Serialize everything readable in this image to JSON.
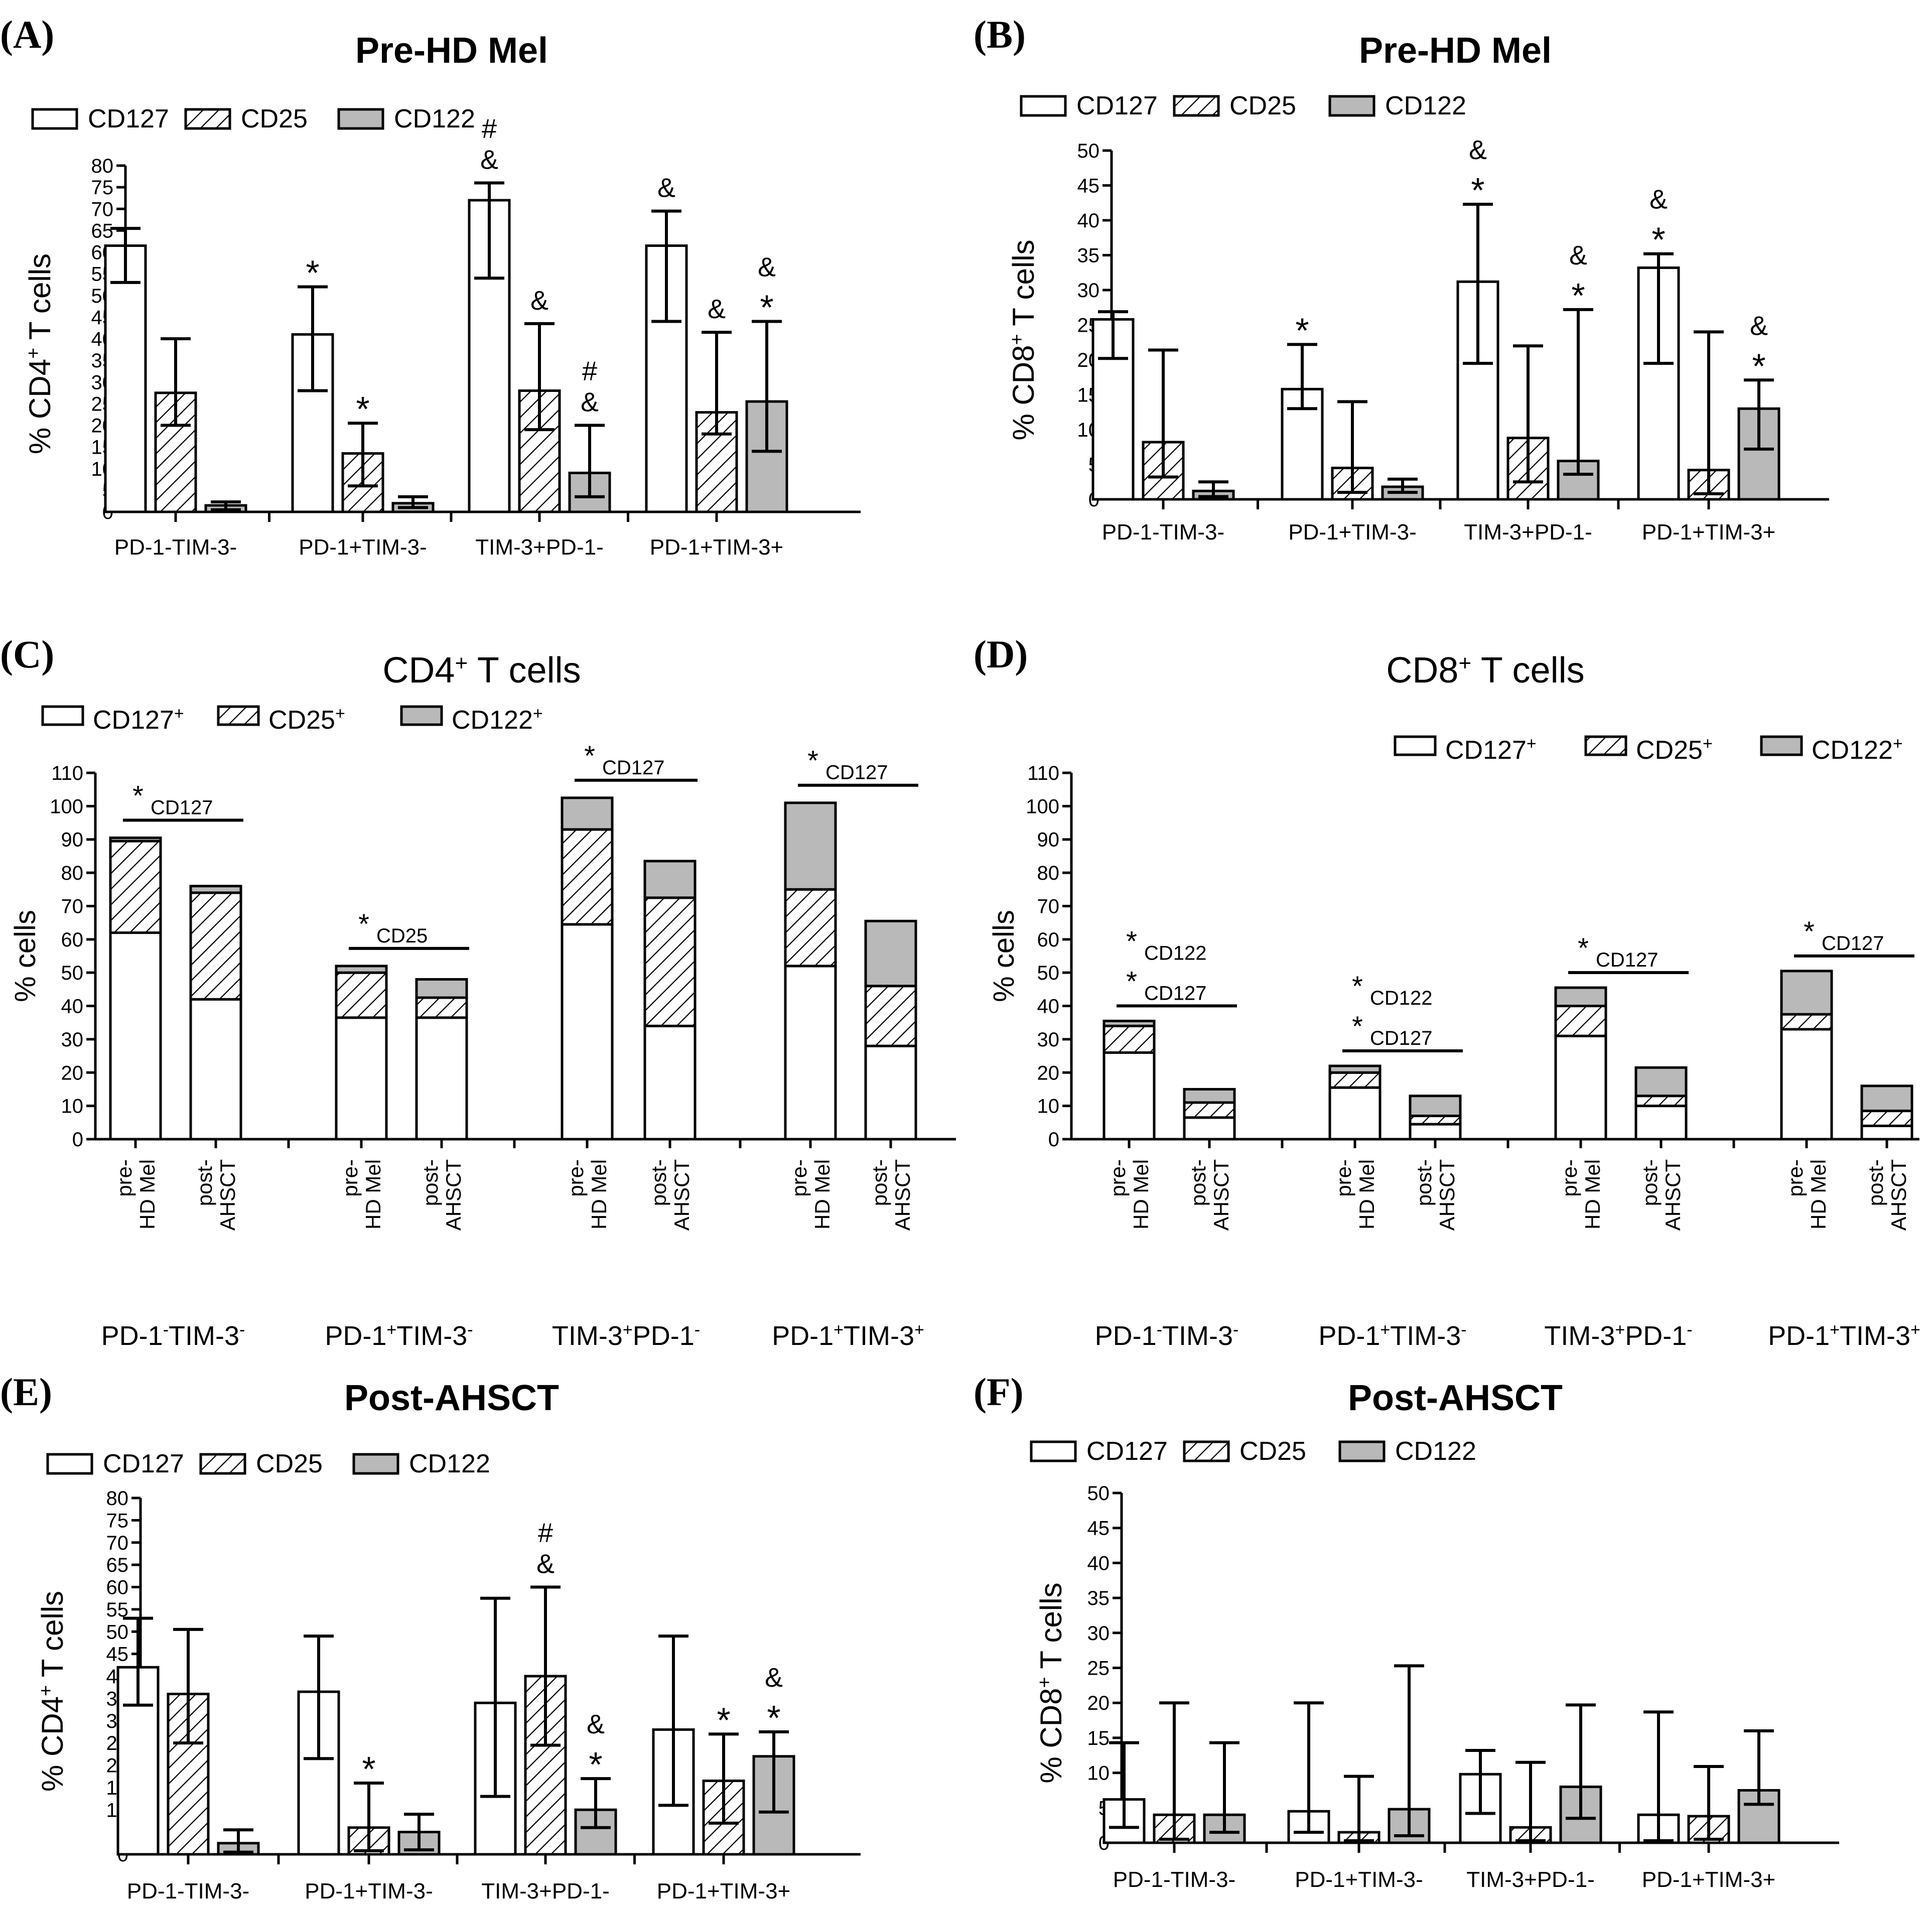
{
  "colors": {
    "gray": "#b9b9b9",
    "black": "#000000",
    "white": "#ffffff"
  },
  "chart_data": [
    {
      "id": "A",
      "panel_label": "(A)",
      "type": "bar",
      "title": "Pre-HD Mel",
      "ylabel_parts": [
        "% CD4",
        "+",
        " T cells"
      ],
      "ylim": [
        0,
        80
      ],
      "yticks": [
        0,
        5,
        10,
        15,
        20,
        25,
        30,
        35,
        40,
        45,
        50,
        55,
        60,
        65,
        70,
        75,
        80
      ],
      "categories": [
        "PD-1-TIM-3-",
        "PD-1+TIM-3-",
        "TIM-3+PD-1-",
        "PD-1+TIM-3+"
      ],
      "legend": [
        "CD127",
        "CD25",
        "CD122"
      ],
      "series": [
        {
          "name": "CD127",
          "values": [
            61.5,
            41,
            72,
            61.5
          ],
          "err_low": [
            53,
            28,
            54,
            44
          ],
          "err_high": [
            65.5,
            52,
            76,
            69.5
          ]
        },
        {
          "name": "CD25",
          "values": [
            27.5,
            13.5,
            28,
            23
          ],
          "err_low": [
            20,
            6,
            19,
            18
          ],
          "err_high": [
            40,
            20.5,
            43.5,
            41.5
          ]
        },
        {
          "name": "CD122",
          "values": [
            1.5,
            2,
            9,
            25.5
          ],
          "err_low": [
            0.5,
            1,
            3.5,
            14
          ],
          "err_high": [
            2.3,
            3.5,
            20,
            44
          ]
        }
      ],
      "annotations": [
        {
          "series": 0,
          "cat": 1,
          "lines": [
            "*"
          ]
        },
        {
          "series": 0,
          "cat": 2,
          "lines": [
            "#",
            "&"
          ]
        },
        {
          "series": 0,
          "cat": 3,
          "lines": [
            "&"
          ]
        },
        {
          "series": 1,
          "cat": 1,
          "lines": [
            "*"
          ]
        },
        {
          "series": 1,
          "cat": 2,
          "lines": [
            "&"
          ]
        },
        {
          "series": 1,
          "cat": 3,
          "lines": [
            "&"
          ]
        },
        {
          "series": 2,
          "cat": 2,
          "lines": [
            "#",
            "&"
          ]
        },
        {
          "series": 2,
          "cat": 3,
          "lines": [
            "&",
            "*"
          ]
        }
      ]
    },
    {
      "id": "B",
      "panel_label": "(B)",
      "type": "bar",
      "title": "Pre-HD Mel",
      "ylabel_parts": [
        "% CD8",
        "+",
        " T cells"
      ],
      "ylim": [
        0,
        50
      ],
      "yticks": [
        0,
        5,
        10,
        15,
        20,
        25,
        30,
        35,
        40,
        45,
        50
      ],
      "categories": [
        "PD-1-TIM-3-",
        "PD-1+TIM-3-",
        "TIM-3+PD-1-",
        "PD-1+TIM-3+"
      ],
      "legend": [
        "CD127",
        "CD25",
        "CD122"
      ],
      "series": [
        {
          "name": "CD127",
          "values": [
            25.8,
            15.8,
            31.2,
            33.2
          ],
          "err_low": [
            20.2,
            13,
            19.5,
            19.5
          ],
          "err_high": [
            26.9,
            22.2,
            42.3,
            35.2
          ]
        },
        {
          "name": "CD25",
          "values": [
            8.2,
            4.5,
            8.8,
            4.2
          ],
          "err_low": [
            3.2,
            1,
            2.5,
            0.8
          ],
          "err_high": [
            21.4,
            14,
            22,
            24
          ]
        },
        {
          "name": "CD122",
          "values": [
            1.2,
            1.8,
            5.5,
            13
          ],
          "err_low": [
            0.4,
            1,
            3.6,
            7.2
          ],
          "err_high": [
            2.5,
            2.9,
            27.2,
            17.1
          ]
        }
      ],
      "annotations": [
        {
          "series": 0,
          "cat": 1,
          "lines": [
            "*"
          ]
        },
        {
          "series": 0,
          "cat": 2,
          "lines": [
            "&",
            "*"
          ]
        },
        {
          "series": 0,
          "cat": 3,
          "lines": [
            "&",
            "*"
          ]
        },
        {
          "series": 2,
          "cat": 2,
          "lines": [
            "&",
            "*"
          ]
        },
        {
          "series": 2,
          "cat": 3,
          "lines": [
            "&",
            "*"
          ]
        }
      ]
    },
    {
      "id": "C",
      "panel_label": "(C)",
      "type": "stacked_bar",
      "title": "CD4",
      "title_sup": "+",
      "title_rest": " T cells",
      "ylabel": "% cells",
      "ylim": [
        0,
        110
      ],
      "yticks": [
        0,
        10,
        20,
        30,
        40,
        50,
        60,
        70,
        80,
        90,
        100,
        110
      ],
      "legend": [
        "CD127",
        "CD25",
        "CD122"
      ],
      "legend_sup": "+",
      "bar_labels": [
        [
          "pre-",
          "HD Mel"
        ],
        [
          "post-",
          "AHSCT"
        ]
      ],
      "group_labels": [
        {
          "a": "PD-1",
          "as": "-",
          "b": "TIM-3",
          "bs": "-"
        },
        {
          "a": "PD-1",
          "as": "+",
          "b": "TIM-3",
          "bs": "-"
        },
        {
          "a": "TIM-3",
          "as": "+",
          "b": "PD-1",
          "bs": "-"
        },
        {
          "a": "PD-1",
          "as": "+",
          "b": "TIM-3",
          "bs": "+"
        }
      ],
      "groups": [
        [
          {
            "CD127": 62,
            "CD25": 27.5,
            "CD122": 1
          },
          {
            "CD127": 42,
            "CD25": 32,
            "CD122": 2
          }
        ],
        [
          {
            "CD127": 36.5,
            "CD25": 13.5,
            "CD122": 2
          },
          {
            "CD127": 36.5,
            "CD25": 6,
            "CD122": 5.5
          }
        ],
        [
          {
            "CD127": 64.5,
            "CD25": 28.5,
            "CD122": 9.5
          },
          {
            "CD127": 34,
            "CD25": 38.5,
            "CD122": 11
          }
        ],
        [
          {
            "CD127": 52,
            "CD25": 23,
            "CD122": 26
          },
          {
            "CD127": 28,
            "CD25": 18,
            "CD122": 19.5
          }
        ]
      ],
      "sig": [
        {
          "group": 0,
          "lines": [
            "CD127"
          ]
        },
        {
          "group": 1,
          "lines": [
            "CD25"
          ]
        },
        {
          "group": 2,
          "lines": [
            "CD127"
          ]
        },
        {
          "group": 3,
          "lines": [
            "CD127"
          ]
        }
      ]
    },
    {
      "id": "D",
      "panel_label": "(D)",
      "type": "stacked_bar",
      "title": "CD8",
      "title_sup": "+",
      "title_rest": " T cells",
      "ylabel": "% cells",
      "ylim": [
        0,
        110
      ],
      "yticks": [
        0,
        10,
        20,
        30,
        40,
        50,
        60,
        70,
        80,
        90,
        100,
        110
      ],
      "legend": [
        "CD127",
        "CD25",
        "CD122"
      ],
      "legend_sup": "+",
      "bar_labels": [
        [
          "pre-",
          "HD Mel"
        ],
        [
          "post-",
          "AHSCT"
        ]
      ],
      "group_labels": [
        {
          "a": "PD-1",
          "as": "-",
          "b": "TIM-3",
          "bs": "-"
        },
        {
          "a": "PD-1",
          "as": "+",
          "b": "TIM-3",
          "bs": "-"
        },
        {
          "a": "TIM-3",
          "as": "+",
          "b": "PD-1",
          "bs": "-"
        },
        {
          "a": "PD-1",
          "as": "+",
          "b": "TIM-3",
          "bs": "+"
        }
      ],
      "groups": [
        [
          {
            "CD127": 26,
            "CD25": 8,
            "CD122": 1.5
          },
          {
            "CD127": 6.5,
            "CD25": 4.5,
            "CD122": 4
          }
        ],
        [
          {
            "CD127": 15.5,
            "CD25": 4.5,
            "CD122": 2
          },
          {
            "CD127": 4.5,
            "CD25": 2.5,
            "CD122": 6
          }
        ],
        [
          {
            "CD127": 31,
            "CD25": 9,
            "CD122": 5.5
          },
          {
            "CD127": 10,
            "CD25": 3,
            "CD122": 8.5
          }
        ],
        [
          {
            "CD127": 33,
            "CD25": 4.5,
            "CD122": 13
          },
          {
            "CD127": 4,
            "CD25": 4.5,
            "CD122": 7.5
          }
        ]
      ],
      "sig": [
        {
          "group": 0,
          "lines": [
            "CD122",
            "CD127"
          ]
        },
        {
          "group": 1,
          "lines": [
            "CD122",
            "CD127"
          ]
        },
        {
          "group": 2,
          "lines": [
            "CD127"
          ]
        },
        {
          "group": 3,
          "lines": [
            "CD127"
          ]
        }
      ]
    },
    {
      "id": "E",
      "panel_label": "(E)",
      "type": "bar",
      "title": "Post-AHSCT",
      "ylabel_parts": [
        "% CD4",
        "+",
        " T cells"
      ],
      "ylim": [
        0,
        80
      ],
      "yticks": [
        0,
        5,
        10,
        15,
        20,
        25,
        30,
        35,
        40,
        45,
        50,
        55,
        60,
        65,
        70,
        75,
        80
      ],
      "categories": [
        "PD-1-TIM-3-",
        "PD-1+TIM-3-",
        "TIM-3+PD-1-",
        "PD-1+TIM-3+"
      ],
      "legend": [
        "CD127",
        "CD25",
        "CD122"
      ],
      "series": [
        {
          "name": "CD127",
          "values": [
            42,
            36.5,
            34,
            28
          ],
          "err_low": [
            33.5,
            21.5,
            13,
            11
          ],
          "err_high": [
            53,
            49,
            57.5,
            49
          ]
        },
        {
          "name": "CD25",
          "values": [
            36,
            6,
            40,
            16.5
          ],
          "err_low": [
            25,
            0.8,
            24.5,
            7
          ],
          "err_high": [
            50.5,
            16,
            60,
            27
          ]
        },
        {
          "name": "CD122",
          "values": [
            2.5,
            5,
            10,
            22
          ],
          "err_low": [
            0.5,
            1,
            6,
            9.5
          ],
          "err_high": [
            5.5,
            9,
            17,
            27.5
          ]
        }
      ],
      "annotations": [
        {
          "series": 1,
          "cat": 1,
          "lines": [
            "*"
          ]
        },
        {
          "series": 1,
          "cat": 2,
          "lines": [
            "#",
            "&"
          ]
        },
        {
          "series": 1,
          "cat": 3,
          "lines": [
            "*"
          ]
        },
        {
          "series": 2,
          "cat": 2,
          "lines": [
            "&",
            "*"
          ]
        },
        {
          "series": 2,
          "cat": 3,
          "lines": [
            "&",
            "*"
          ]
        }
      ]
    },
    {
      "id": "F",
      "panel_label": "(F)",
      "type": "bar",
      "title": "Post-AHSCT",
      "ylabel_parts": [
        "% CD8",
        "+",
        " T cells"
      ],
      "ylim": [
        0,
        50
      ],
      "yticks": [
        0,
        5,
        10,
        15,
        20,
        25,
        30,
        35,
        40,
        45,
        50
      ],
      "categories": [
        "PD-1-TIM-3-",
        "PD-1+TIM-3-",
        "TIM-3+PD-1-",
        "PD-1+TIM-3+"
      ],
      "legend": [
        "CD127",
        "CD25",
        "CD122"
      ],
      "series": [
        {
          "name": "CD127",
          "values": [
            6.2,
            4.5,
            9.8,
            4
          ],
          "err_low": [
            2.2,
            1.5,
            4.2,
            0.3
          ],
          "err_high": [
            14.3,
            20,
            13.2,
            18.7
          ]
        },
        {
          "name": "CD25",
          "values": [
            4,
            1.5,
            2.2,
            3.8
          ],
          "err_low": [
            0.5,
            0.3,
            0.3,
            0.5
          ],
          "err_high": [
            20,
            9.5,
            11.5,
            10.9
          ]
        },
        {
          "name": "CD122",
          "values": [
            4,
            4.8,
            8,
            7.5
          ],
          "err_low": [
            1.5,
            1,
            3.5,
            5.5
          ],
          "err_high": [
            14.3,
            25.3,
            19.7,
            16
          ]
        }
      ],
      "annotations": []
    }
  ]
}
